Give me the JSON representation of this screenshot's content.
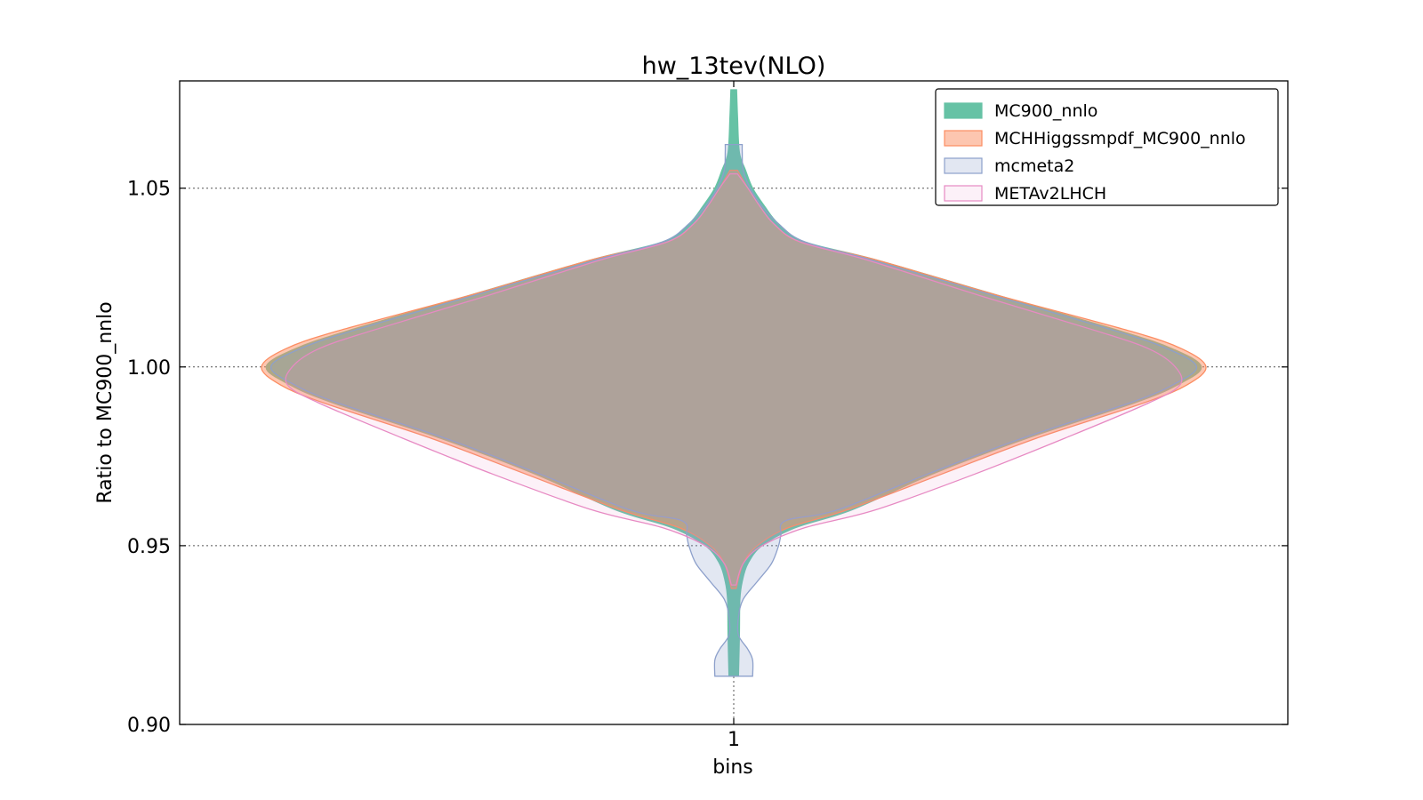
{
  "chart_data": {
    "type": "violin",
    "title": "hw_13tev(NLO)",
    "xlabel": "bins",
    "ylabel": "Ratio to MC900_nnlo",
    "categories": [
      "1"
    ],
    "ylim": [
      0.9,
      1.08
    ],
    "yticks": [
      "0.90",
      "0.95",
      "1.00",
      "1.05"
    ],
    "ytick_values": [
      0.9,
      0.95,
      1.0,
      1.05
    ],
    "grid": true,
    "legend_position": "upper right",
    "series": [
      {
        "name": "MC900_nnlo",
        "fill": "#66c2a5",
        "stroke": "#66c2a5",
        "fill_opacity": 1.0,
        "profile": [
          [
            0.9135,
            0.01
          ],
          [
            0.925,
            0.012
          ],
          [
            0.935,
            0.013
          ],
          [
            0.94,
            0.018
          ],
          [
            0.945,
            0.03
          ],
          [
            0.95,
            0.06
          ],
          [
            0.955,
            0.13
          ],
          [
            0.96,
            0.25
          ],
          [
            0.97,
            0.42
          ],
          [
            0.98,
            0.62
          ],
          [
            0.99,
            0.85
          ],
          [
            0.995,
            0.94
          ],
          [
            1.0,
            0.99
          ],
          [
            1.005,
            0.93
          ],
          [
            1.01,
            0.82
          ],
          [
            1.02,
            0.56
          ],
          [
            1.03,
            0.3
          ],
          [
            1.035,
            0.15
          ],
          [
            1.04,
            0.095
          ],
          [
            1.045,
            0.065
          ],
          [
            1.05,
            0.04
          ],
          [
            1.055,
            0.025
          ],
          [
            1.06,
            0.012
          ],
          [
            1.07,
            0.008
          ],
          [
            1.0775,
            0.006
          ]
        ]
      },
      {
        "name": "MCHHiggssmpdf_MC900_nnlo",
        "fill": "#fc8d62",
        "stroke": "#fc8d62",
        "fill_opacity": 0.5,
        "profile": [
          [
            0.938,
            0.005
          ],
          [
            0.945,
            0.02
          ],
          [
            0.95,
            0.05
          ],
          [
            0.955,
            0.115
          ],
          [
            0.96,
            0.24
          ],
          [
            0.97,
            0.44
          ],
          [
            0.98,
            0.64
          ],
          [
            0.99,
            0.87
          ],
          [
            0.995,
            0.96
          ],
          [
            1.0,
            1.0
          ],
          [
            1.005,
            0.95
          ],
          [
            1.01,
            0.84
          ],
          [
            1.02,
            0.56
          ],
          [
            1.03,
            0.3
          ],
          [
            1.035,
            0.14
          ],
          [
            1.04,
            0.085
          ],
          [
            1.045,
            0.055
          ],
          [
            1.05,
            0.03
          ],
          [
            1.055,
            0.008
          ]
        ]
      },
      {
        "name": "mcmeta2",
        "fill": "#8da0cb",
        "stroke": "#8da0cb",
        "fill_opacity": 0.25,
        "profile": [
          [
            0.9135,
            0.04
          ],
          [
            0.918,
            0.04
          ],
          [
            0.921,
            0.03
          ],
          [
            0.925,
            0.01
          ],
          [
            0.93,
            0.01
          ],
          [
            0.935,
            0.02
          ],
          [
            0.94,
            0.05
          ],
          [
            0.945,
            0.08
          ],
          [
            0.95,
            0.095
          ],
          [
            0.953,
            0.1
          ],
          [
            0.957,
            0.11
          ],
          [
            0.96,
            0.22
          ],
          [
            0.97,
            0.41
          ],
          [
            0.98,
            0.61
          ],
          [
            0.99,
            0.84
          ],
          [
            0.995,
            0.93
          ],
          [
            1.0,
            0.98
          ],
          [
            1.005,
            0.92
          ],
          [
            1.01,
            0.81
          ],
          [
            1.02,
            0.55
          ],
          [
            1.03,
            0.29
          ],
          [
            1.035,
            0.15
          ],
          [
            1.04,
            0.095
          ],
          [
            1.045,
            0.06
          ],
          [
            1.05,
            0.035
          ],
          [
            1.055,
            0.02
          ],
          [
            1.06,
            0.018
          ],
          [
            1.0622,
            0.018
          ]
        ]
      },
      {
        "name": "METAv2LHCH",
        "fill": "#e78ac3",
        "stroke": "#e78ac3",
        "fill_opacity": 0.12,
        "profile": [
          [
            0.939,
            0.005
          ],
          [
            0.945,
            0.02
          ],
          [
            0.95,
            0.06
          ],
          [
            0.955,
            0.15
          ],
          [
            0.96,
            0.3
          ],
          [
            0.97,
            0.51
          ],
          [
            0.98,
            0.7
          ],
          [
            0.99,
            0.88
          ],
          [
            0.995,
            0.945
          ],
          [
            1.0,
            0.935
          ],
          [
            1.005,
            0.88
          ],
          [
            1.01,
            0.77
          ],
          [
            1.02,
            0.52
          ],
          [
            1.03,
            0.28
          ],
          [
            1.035,
            0.14
          ],
          [
            1.04,
            0.085
          ],
          [
            1.045,
            0.055
          ],
          [
            1.05,
            0.03
          ],
          [
            1.054,
            0.008
          ]
        ]
      }
    ]
  }
}
